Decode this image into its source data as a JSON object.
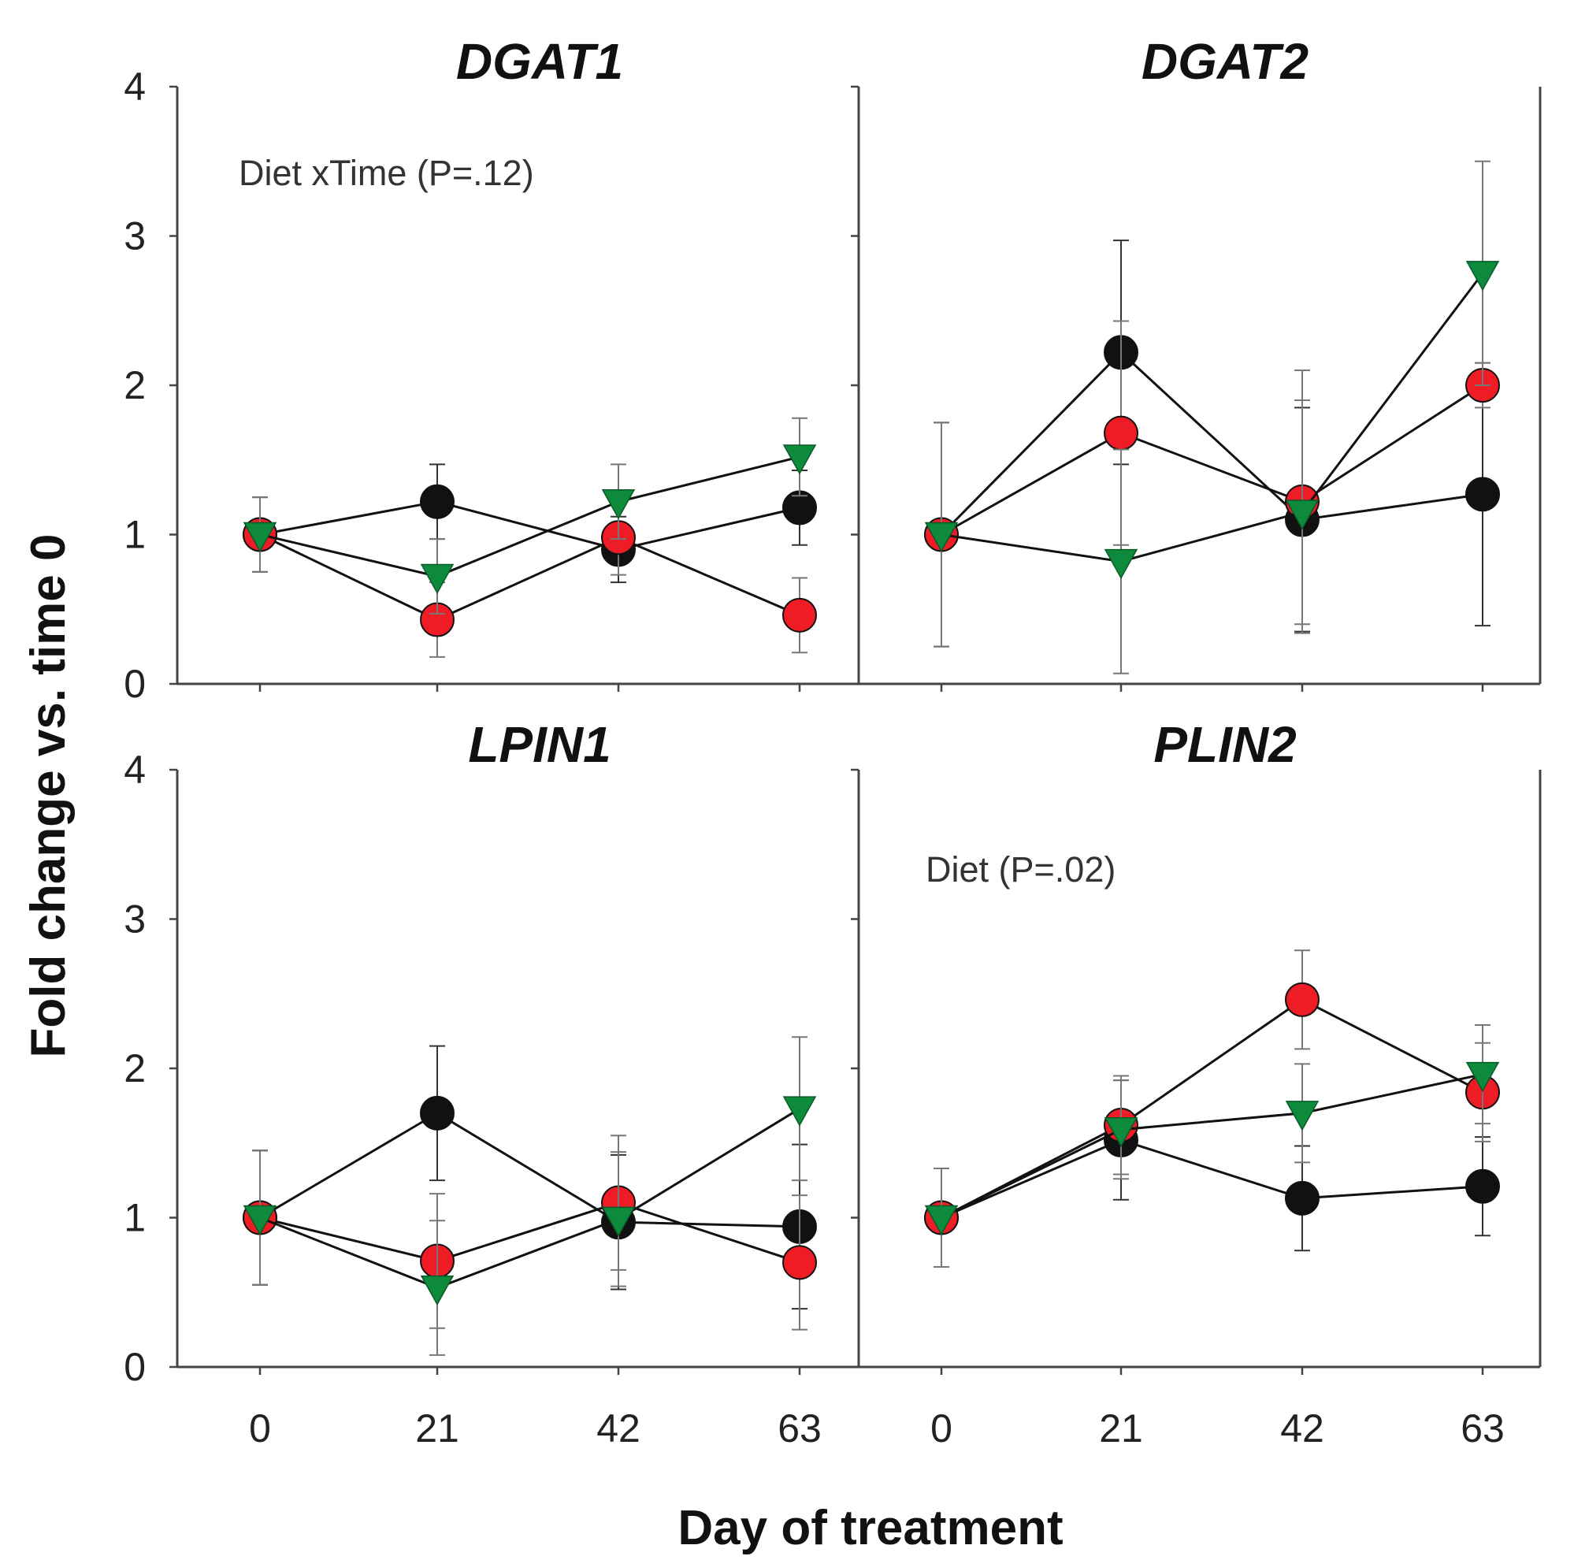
{
  "chart_data": {
    "type": "line",
    "xlabel": "Day of treatment",
    "ylabel": "Fold change vs. time 0",
    "x": [
      0,
      21,
      42,
      63
    ],
    "x_tick_labels": [
      "0",
      "21",
      "42",
      "63"
    ],
    "y_tick_labels": [
      "0",
      "1",
      "2",
      "3",
      "4"
    ],
    "ylim": [
      0,
      4
    ],
    "legend": "none",
    "series_styles": {
      "black": {
        "color": "#111111",
        "marker": "circle"
      },
      "red": {
        "color": "#ee1c24",
        "marker": "circle"
      },
      "green": {
        "color": "#0d8a3c",
        "marker": "triangle-down"
      }
    },
    "panels": [
      {
        "title": "DGAT1",
        "annotation": "Diet xTime (P=.12)",
        "series": [
          {
            "name": "black",
            "values": [
              1.0,
              1.22,
              0.9,
              1.18
            ],
            "errors": [
              0.25,
              0.25,
              0.22,
              0.25
            ]
          },
          {
            "name": "red",
            "values": [
              1.0,
              0.43,
              0.98,
              0.46
            ],
            "errors": [
              0.25,
              0.25,
              0.25,
              0.25
            ]
          },
          {
            "name": "green",
            "values": [
              1.0,
              0.72,
              1.22,
              1.52
            ],
            "errors": [
              0.25,
              0.25,
              0.25,
              0.26
            ]
          }
        ]
      },
      {
        "title": "DGAT2",
        "annotation": "",
        "series": [
          {
            "name": "black",
            "values": [
              1.0,
              2.22,
              1.1,
              1.27
            ],
            "errors": [
              0.75,
              0.75,
              0.75,
              0.88
            ]
          },
          {
            "name": "red",
            "values": [
              1.0,
              1.68,
              1.22,
              2.0
            ],
            "errors": [
              0.75,
              0.75,
              0.88,
              0.15
            ]
          },
          {
            "name": "green",
            "values": [
              1.0,
              0.82,
              1.15,
              2.75
            ],
            "errors": [
              0.75,
              0.75,
              0.75,
              0.75
            ]
          }
        ]
      },
      {
        "title": "LPIN1",
        "annotation": "",
        "series": [
          {
            "name": "black",
            "values": [
              1.0,
              1.7,
              0.97,
              0.94
            ],
            "errors": [
              0.45,
              0.45,
              0.45,
              0.55
            ]
          },
          {
            "name": "red",
            "values": [
              1.0,
              0.71,
              1.1,
              0.7
            ],
            "errors": [
              0.45,
              0.45,
              0.45,
              0.45
            ]
          },
          {
            "name": "green",
            "values": [
              1.0,
              0.53,
              0.99,
              1.73
            ],
            "errors": [
              0.45,
              0.45,
              0.45,
              0.48
            ]
          }
        ]
      },
      {
        "title": "PLIN2",
        "annotation": "Diet (P=.02)",
        "series": [
          {
            "name": "black",
            "values": [
              1.0,
              1.52,
              1.13,
              1.21
            ],
            "errors": [
              0.33,
              0.4,
              0.35,
              0.33
            ]
          },
          {
            "name": "red",
            "values": [
              1.0,
              1.62,
              2.46,
              1.84
            ],
            "errors": [
              0.33,
              0.33,
              0.33,
              0.33
            ]
          },
          {
            "name": "green",
            "values": [
              1.0,
              1.59,
              1.7,
              1.96
            ],
            "errors": [
              0.33,
              0.33,
              0.33,
              0.33
            ]
          }
        ]
      }
    ]
  }
}
